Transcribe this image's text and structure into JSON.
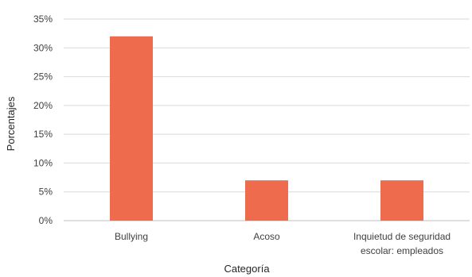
{
  "chart_data": {
    "type": "bar",
    "title": "",
    "xlabel": "Categoría",
    "ylabel": "Porcentajes",
    "categories": [
      [
        "Bullying"
      ],
      [
        "Acoso"
      ],
      [
        "Inquietud de seguridad",
        "escolar: empleados"
      ]
    ],
    "values": [
      32,
      7,
      7
    ],
    "ylim": [
      0,
      35
    ],
    "yticks": [
      "0%",
      "5%",
      "10%",
      "15%",
      "20%",
      "25%",
      "30%",
      "35%"
    ],
    "grid": true,
    "legend": "none",
    "bar_color": "#ee6c4d"
  }
}
